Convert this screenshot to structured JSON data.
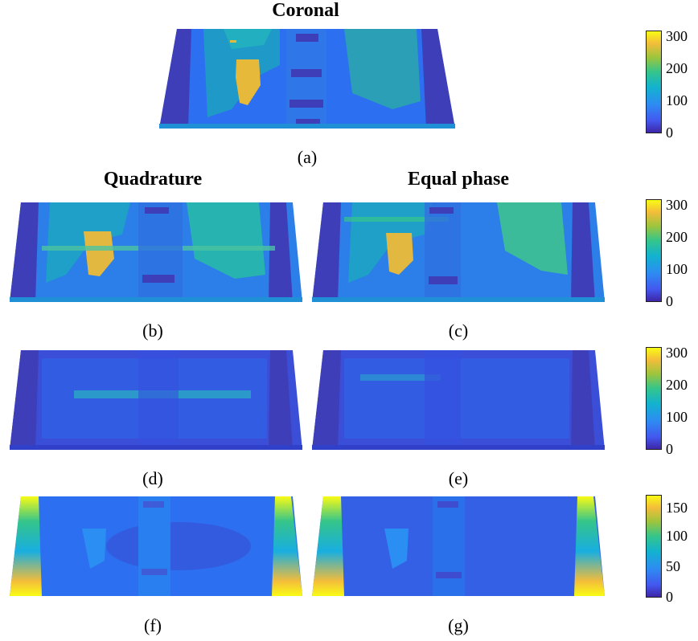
{
  "titles": {
    "coronal": "Coronal",
    "quadrature": "Quadrature",
    "equal_phase": "Equal phase"
  },
  "captions": {
    "a": "(a)",
    "b": "(b)",
    "c": "(c)",
    "d": "(d)",
    "e": "(e)",
    "f": "(f)",
    "g": "(g)"
  },
  "colorbars": {
    "row_a": [
      "300",
      "200",
      "100",
      "0"
    ],
    "row_bc": [
      "300",
      "200",
      "100",
      "0"
    ],
    "row_de": [
      "300",
      "200",
      "100",
      "0"
    ],
    "row_fg": [
      "150",
      "100",
      "50",
      "0"
    ]
  },
  "colors": {
    "dark_blue": "#3e26a8",
    "blue": "#2c6ff0",
    "teal": "#18aee0",
    "green": "#35c58a",
    "gold": "#e6b93a",
    "yellow": "#f9fb15"
  }
}
